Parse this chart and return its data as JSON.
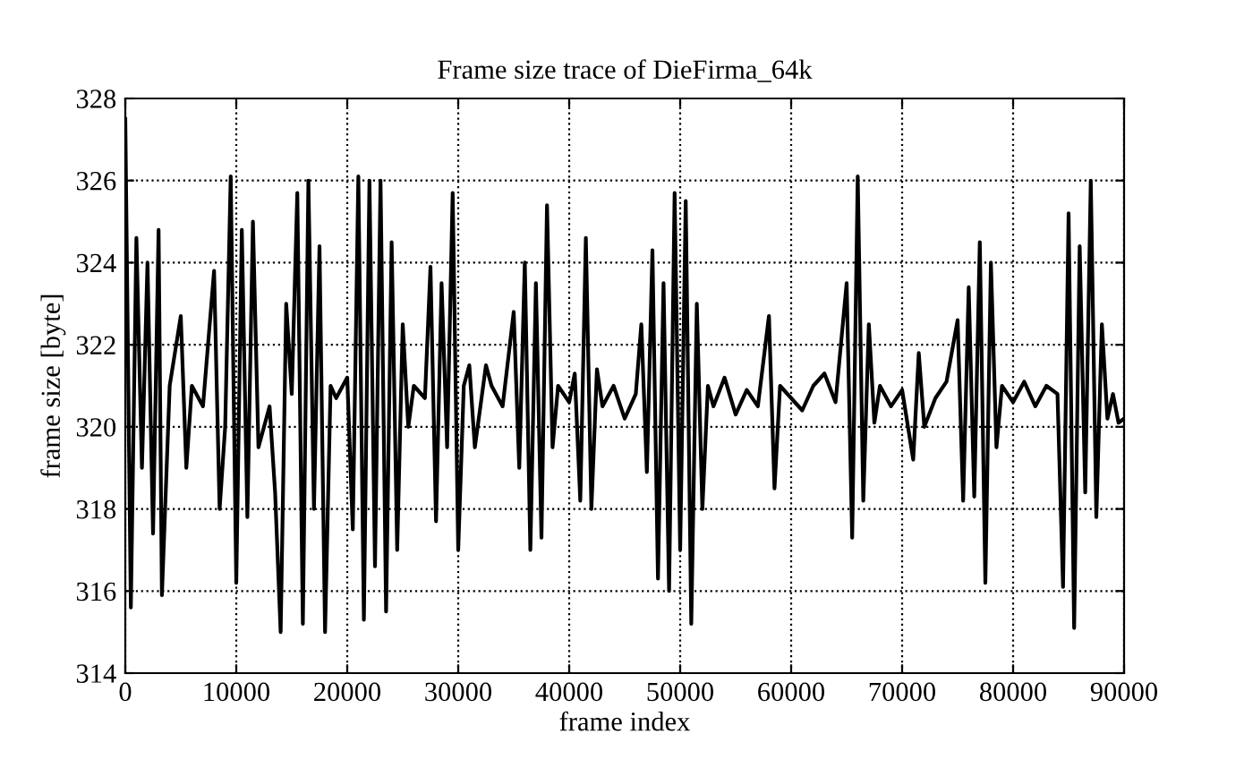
{
  "chart_data": {
    "type": "line",
    "title": "Frame size trace of DieFirma_64k",
    "xlabel": "frame index",
    "ylabel": "frame size [byte]",
    "xlim": [
      0,
      90000
    ],
    "ylim": [
      314,
      328
    ],
    "xticks": [
      0,
      10000,
      20000,
      30000,
      40000,
      50000,
      60000,
      70000,
      80000,
      90000
    ],
    "yticks": [
      314,
      316,
      318,
      320,
      322,
      324,
      326,
      328
    ],
    "grid": true,
    "legend": false,
    "marker": "none",
    "line_style": "solid",
    "x": [
      0,
      500,
      1000,
      1500,
      2000,
      2500,
      3000,
      3300,
      4000,
      5000,
      5500,
      6000,
      7000,
      8000,
      8500,
      9000,
      9500,
      10000,
      10500,
      11000,
      11500,
      12000,
      13000,
      13500,
      14000,
      14500,
      15000,
      15500,
      16000,
      16500,
      17000,
      17500,
      18000,
      18500,
      19000,
      20000,
      20500,
      21000,
      21500,
      22000,
      22500,
      23000,
      23500,
      24000,
      24500,
      25000,
      25500,
      26000,
      27000,
      27500,
      28000,
      28500,
      29000,
      29500,
      30000,
      30500,
      31000,
      31500,
      32000,
      32500,
      33000,
      34000,
      35000,
      35500,
      36000,
      36500,
      37000,
      37500,
      38000,
      38500,
      39000,
      40000,
      40500,
      41000,
      41500,
      42000,
      42500,
      43000,
      44000,
      45000,
      46000,
      46500,
      47000,
      47500,
      48000,
      48500,
      49000,
      49500,
      50000,
      50500,
      51000,
      51500,
      52000,
      52500,
      53000,
      54000,
      55000,
      56000,
      57000,
      58000,
      58500,
      59000,
      60000,
      61000,
      62000,
      63000,
      64000,
      65000,
      65500,
      66000,
      66500,
      67000,
      67500,
      68000,
      69000,
      70000,
      71000,
      71500,
      72000,
      73000,
      74000,
      75000,
      75500,
      76000,
      76500,
      77000,
      77500,
      78000,
      78500,
      79000,
      80000,
      81000,
      82000,
      83000,
      84000,
      84500,
      85000,
      85500,
      86000,
      86500,
      87000,
      87500,
      88000,
      88500,
      89000,
      89500,
      90000
    ],
    "series": [
      {
        "color": "#000000",
        "values": [
          327.5,
          315.6,
          324.6,
          319,
          324,
          317.4,
          324.8,
          315.9,
          321,
          322.7,
          319,
          321,
          320.5,
          323.8,
          318,
          320,
          326.1,
          316.2,
          324.8,
          317.8,
          325,
          319.5,
          320.5,
          318.4,
          315,
          323,
          320.8,
          325.7,
          315.2,
          326,
          318,
          324.4,
          315,
          321,
          320.7,
          321.2,
          317.5,
          326.1,
          315.3,
          326,
          316.6,
          326,
          315.5,
          324.5,
          317,
          322.5,
          320,
          321,
          320.7,
          323.9,
          317.7,
          323.5,
          319.5,
          325.7,
          317,
          321,
          321.5,
          319.5,
          320.5,
          321.5,
          321,
          320.5,
          322.8,
          319,
          324,
          317,
          323.5,
          317.3,
          325.4,
          319.5,
          321,
          320.6,
          321.3,
          318.2,
          324.6,
          318,
          321.4,
          320.5,
          321,
          320.2,
          320.8,
          322.5,
          318.9,
          324.3,
          316.3,
          323.5,
          316,
          325.7,
          317,
          325.5,
          315.2,
          323,
          318,
          321,
          320.5,
          321.2,
          320.3,
          320.9,
          320.5,
          322.7,
          318.5,
          321,
          320.7,
          320.4,
          321,
          321.3,
          320.6,
          323.5,
          317.3,
          326.1,
          318.2,
          322.5,
          320.1,
          321,
          320.5,
          320.9,
          319.2,
          321.8,
          320,
          320.7,
          321.1,
          322.6,
          318.2,
          323.4,
          318.3,
          324.5,
          316.2,
          324,
          319.5,
          321,
          320.6,
          321.1,
          320.5,
          321,
          320.8,
          316.1,
          325.2,
          315.1,
          324.4,
          318.4,
          326,
          317.8,
          322.5,
          320.2,
          320.8,
          320.1,
          320.2
        ]
      }
    ]
  }
}
